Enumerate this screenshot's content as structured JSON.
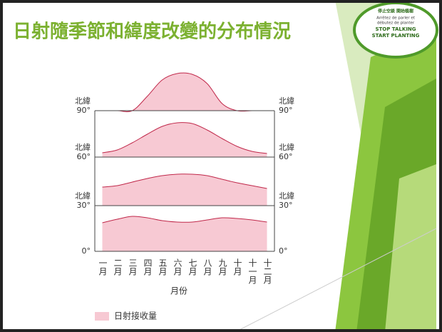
{
  "chart_data": {
    "type": "area",
    "title": "日射隨季節和緯度改變的分布情況",
    "categories": [
      "一月",
      "二月",
      "三月",
      "四月",
      "五月",
      "六月",
      "七月",
      "八月",
      "九月",
      "十月",
      "十一月",
      "十二月"
    ],
    "x_label": "月份",
    "legend": "日射接收量",
    "color": "#f7c9d3",
    "line_color": "#c0284a",
    "ylim": [
      0,
      60
    ],
    "bands": [
      {
        "label": [
          "北緯",
          "90°"
        ],
        "values": [
          0,
          0,
          0,
          20,
          43,
          52,
          51,
          38,
          10,
          0,
          0,
          0
        ]
      },
      {
        "label": [
          "北緯",
          "60°"
        ],
        "values": [
          6,
          10,
          20,
          32,
          43,
          48,
          47,
          38,
          26,
          15,
          8,
          5
        ]
      },
      {
        "label": [
          "北緯",
          "30°"
        ],
        "values": [
          26,
          28,
          33,
          38,
          42,
          44,
          44,
          42,
          37,
          32,
          28,
          24
        ]
      },
      {
        "label": [
          "0°"
        ],
        "values": [
          40,
          45,
          49,
          47,
          43,
          41,
          41,
          44,
          47,
          46,
          44,
          41
        ]
      }
    ]
  },
  "logo": {
    "lines": [
      "停止空談 開始植樹",
      "Arrêtez de parler et",
      "débutez de planter",
      "STOP TALKING",
      "START PLANTING"
    ]
  }
}
